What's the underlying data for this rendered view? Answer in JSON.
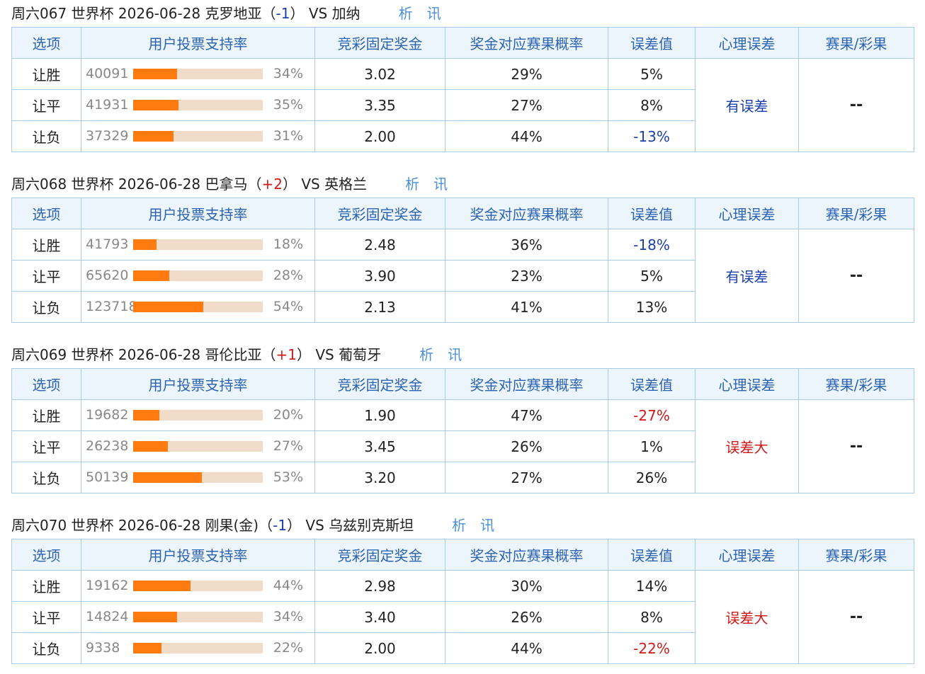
{
  "columns": [
    "选项",
    "用户投票支持率",
    "竞彩固定奖金",
    "奖金对应赛果概率",
    "误差值",
    "心理误差",
    "赛果/彩果"
  ],
  "links": {
    "xi": "析",
    "xun": "讯"
  },
  "matches": [
    {
      "id": "周六067",
      "league": "世界杯",
      "date": "2026-06-28",
      "home": "克罗地亚",
      "handicap": "-1",
      "vs": "VS",
      "away": "加纳",
      "psych_error": "有误差",
      "result": "--",
      "rows": [
        {
          "option": "让胜",
          "votes": "40091",
          "pct_text": "34%",
          "pct": 34,
          "odds": "3.02",
          "prob": "29%",
          "error": "5%"
        },
        {
          "option": "让平",
          "votes": "41931",
          "pct_text": "35%",
          "pct": 35,
          "odds": "3.35",
          "prob": "27%",
          "error": "8%"
        },
        {
          "option": "让负",
          "votes": "37329",
          "pct_text": "31%",
          "pct": 31,
          "odds": "2.00",
          "prob": "44%",
          "error": "-13%"
        }
      ]
    },
    {
      "id": "周六068",
      "league": "世界杯",
      "date": "2026-06-28",
      "home": "巴拿马",
      "handicap": "+2",
      "vs": "VS",
      "away": "英格兰",
      "psych_error": "有误差",
      "result": "--",
      "rows": [
        {
          "option": "让胜",
          "votes": "41793",
          "pct_text": "18%",
          "pct": 18,
          "odds": "2.48",
          "prob": "36%",
          "error": "-18%"
        },
        {
          "option": "让平",
          "votes": "65620",
          "pct_text": "28%",
          "pct": 28,
          "odds": "3.90",
          "prob": "23%",
          "error": "5%"
        },
        {
          "option": "让负",
          "votes": "123718",
          "pct_text": "54%",
          "pct": 54,
          "odds": "2.13",
          "prob": "41%",
          "error": "13%"
        }
      ]
    },
    {
      "id": "周六069",
      "league": "世界杯",
      "date": "2026-06-28",
      "home": "哥伦比亚",
      "handicap": "+1",
      "vs": "VS",
      "away": "葡萄牙",
      "psych_error": "误差大",
      "result": "--",
      "rows": [
        {
          "option": "让胜",
          "votes": "19682",
          "pct_text": "20%",
          "pct": 20,
          "odds": "1.90",
          "prob": "47%",
          "error": "-27%"
        },
        {
          "option": "让平",
          "votes": "26238",
          "pct_text": "27%",
          "pct": 27,
          "odds": "3.45",
          "prob": "26%",
          "error": "1%"
        },
        {
          "option": "让负",
          "votes": "50139",
          "pct_text": "53%",
          "pct": 53,
          "odds": "3.20",
          "prob": "27%",
          "error": "26%"
        }
      ]
    },
    {
      "id": "周六070",
      "league": "世界杯",
      "date": "2026-06-28",
      "home": "刚果(金)",
      "handicap": "-1",
      "vs": "VS",
      "away": "乌兹别克斯坦",
      "psych_error": "误差大",
      "result": "--",
      "rows": [
        {
          "option": "让胜",
          "votes": "19162",
          "pct_text": "44%",
          "pct": 44,
          "odds": "2.98",
          "prob": "30%",
          "error": "14%"
        },
        {
          "option": "让平",
          "votes": "14824",
          "pct_text": "34%",
          "pct": 34,
          "odds": "3.40",
          "prob": "26%",
          "error": "8%"
        },
        {
          "option": "让负",
          "votes": "9338",
          "pct_text": "22%",
          "pct": 22,
          "odds": "2.00",
          "prob": "44%",
          "error": "-22%"
        }
      ]
    }
  ]
}
